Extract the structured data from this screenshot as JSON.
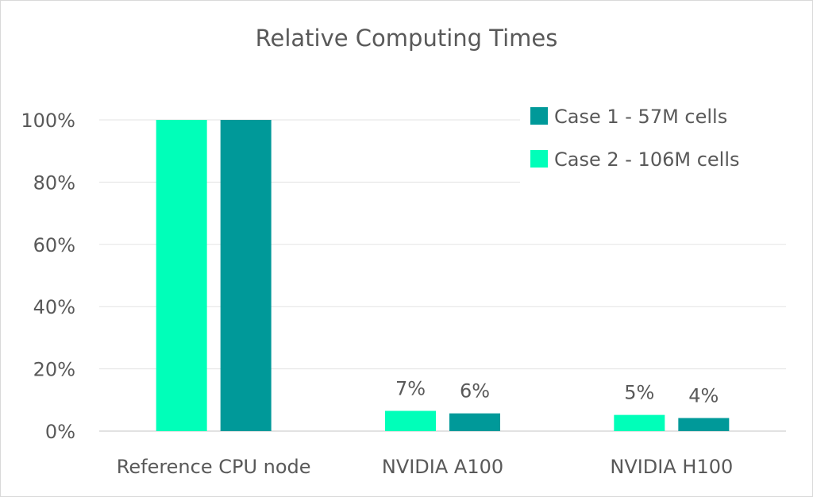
{
  "chart_data": {
    "type": "bar",
    "title": "Relative Computing Times",
    "xlabel": "",
    "ylabel": "",
    "ylim": [
      0,
      100
    ],
    "yticks": [
      "0%",
      "20%",
      "40%",
      "60%",
      "80%",
      "100%"
    ],
    "categories": [
      "Reference CPU node",
      "NVIDIA A100",
      "NVIDIA H100"
    ],
    "series": [
      {
        "name": "Case 2 - 106M cells",
        "color": "#00FFB9",
        "values": [
          100,
          6.5,
          5.2
        ],
        "labels": [
          "",
          "7%",
          "5%"
        ]
      },
      {
        "name": "Case 1 - 57M cells",
        "color": "#009999",
        "values": [
          100,
          5.7,
          4.2
        ],
        "labels": [
          "",
          "6%",
          "4%"
        ]
      }
    ],
    "legend_entries": [
      "Case 1 - 57M cells",
      "Case 2 - 106M cells"
    ],
    "legend_position": "top-right",
    "grid": true
  }
}
